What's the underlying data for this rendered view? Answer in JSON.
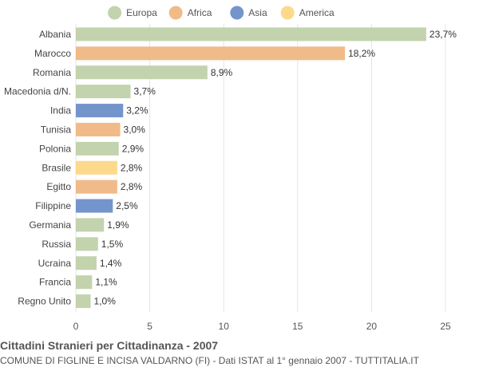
{
  "chart_data": {
    "type": "bar",
    "orientation": "horizontal",
    "title": "Cittadini Stranieri per Cittadinanza - 2007",
    "subtitle": "COMUNE DI FIGLINE E INCISA VALDARNO (FI) - Dati ISTAT al 1° gennaio 2007 - TUTTITALIA.IT",
    "legend": {
      "position": "top",
      "items": [
        {
          "name": "Europa",
          "color": "#c2d3ad"
        },
        {
          "name": "Africa",
          "color": "#f0bb88"
        },
        {
          "name": "Asia",
          "color": "#7494cc"
        },
        {
          "name": "America",
          "color": "#fdd98b"
        }
      ]
    },
    "categories": [
      "Albania",
      "Marocco",
      "Romania",
      "Macedonia d/N.",
      "India",
      "Tunisia",
      "Polonia",
      "Brasile",
      "Egitto",
      "Filippine",
      "Germania",
      "Russia",
      "Ucraina",
      "Francia",
      "Regno Unito"
    ],
    "values": [
      23.7,
      18.2,
      8.9,
      3.7,
      3.2,
      3.0,
      2.9,
      2.8,
      2.8,
      2.5,
      1.9,
      1.5,
      1.4,
      1.1,
      1.0
    ],
    "value_labels": [
      "23,7%",
      "18,2%",
      "8,9%",
      "3,7%",
      "3,2%",
      "3,0%",
      "2,9%",
      "2,8%",
      "2,8%",
      "2,5%",
      "1,9%",
      "1,5%",
      "1,4%",
      "1,1%",
      "1,0%"
    ],
    "groups": [
      "Europa",
      "Africa",
      "Europa",
      "Europa",
      "Asia",
      "Africa",
      "Europa",
      "America",
      "Africa",
      "Asia",
      "Europa",
      "Europa",
      "Europa",
      "Europa",
      "Europa"
    ],
    "xlim": [
      0,
      25
    ],
    "xticks": [
      0,
      5,
      10,
      15,
      20,
      25
    ],
    "grid": true
  }
}
